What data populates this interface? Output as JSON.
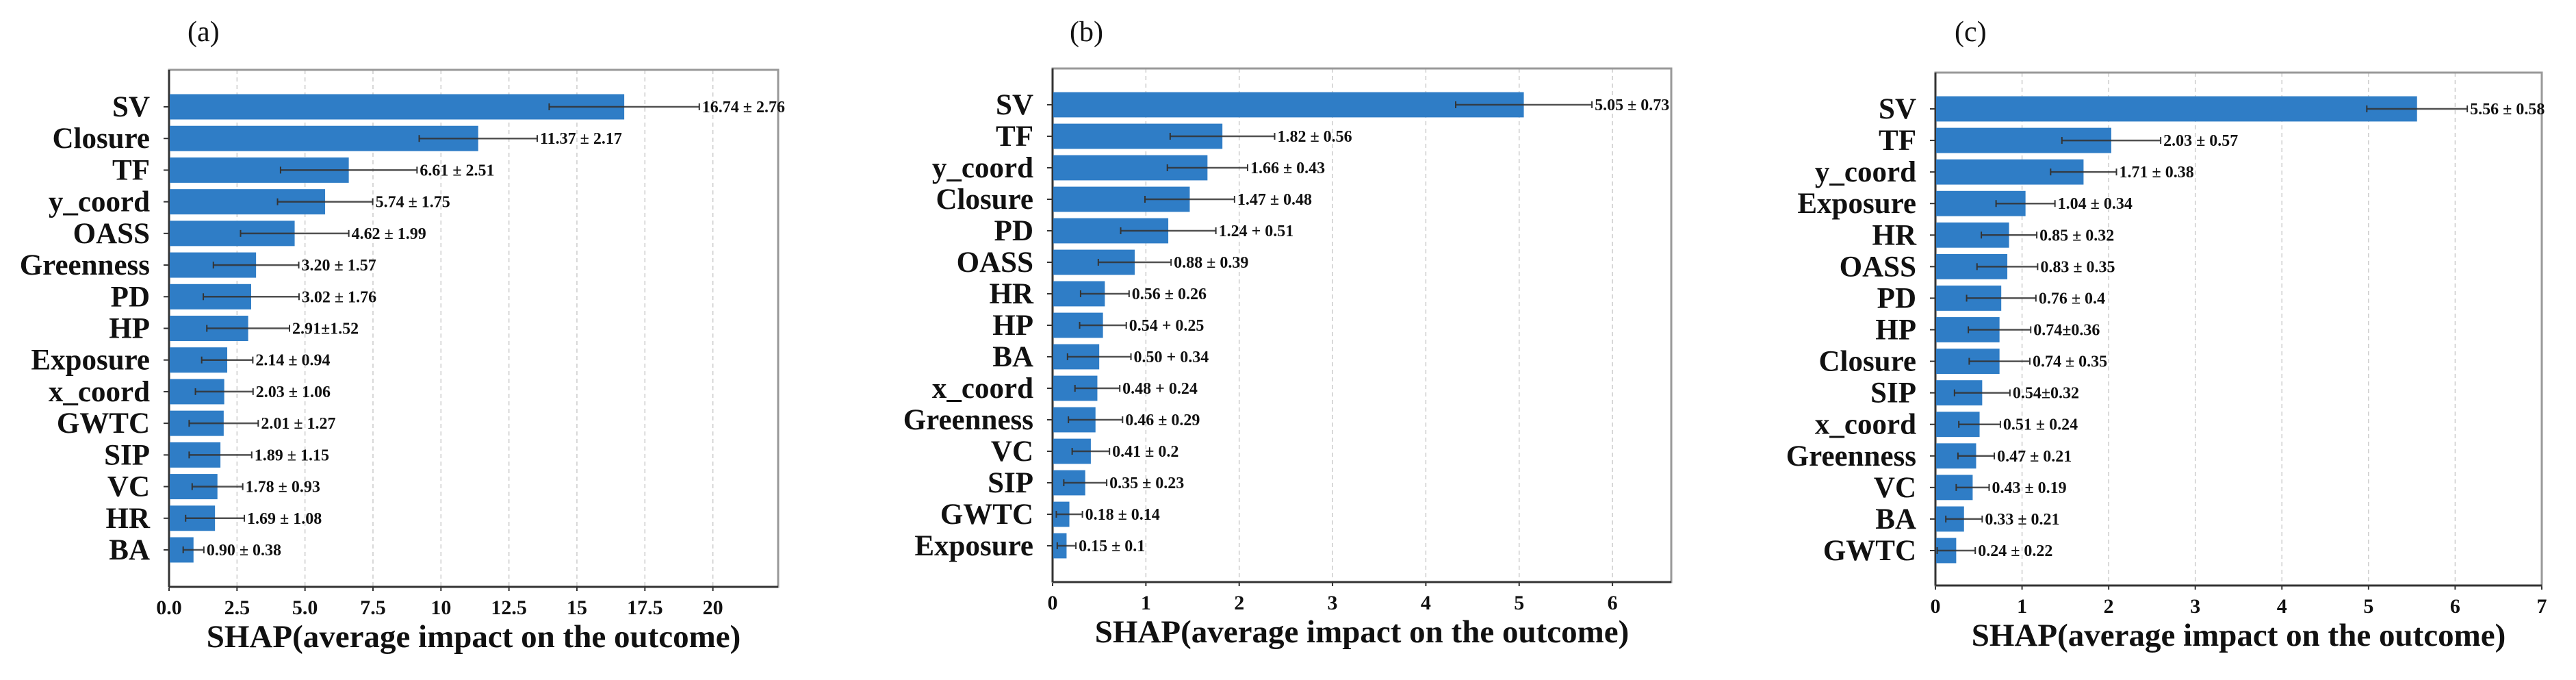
{
  "colors": {
    "bar": "#2f7dc6",
    "error": "#333333",
    "grid": "#cccccc",
    "frame": "#999999"
  },
  "chart_data": [
    {
      "type": "bar",
      "orientation": "horizontal",
      "panel_label": "(a)",
      "xlabel": "SHAP(average impact on the outcome)",
      "xlim": [
        0,
        22.4
      ],
      "xticks": [
        0,
        2.5,
        5,
        7.5,
        10,
        12.5,
        15,
        17.5,
        20
      ],
      "xtick_labels": [
        "0.0",
        "2.5",
        "5.0",
        "7.5",
        "10",
        "12.5",
        "15",
        "17.5",
        "20"
      ],
      "grid": "vertical dashed",
      "categories": [
        "SV",
        "Closure",
        "TF",
        "y_coord",
        "OASS",
        "Greenness",
        "PD",
        "HP",
        "Exposure",
        "x_coord",
        "GWTC",
        "SIP",
        "VC",
        "HR",
        "BA"
      ],
      "values": [
        16.74,
        11.37,
        6.61,
        5.74,
        4.62,
        3.2,
        3.02,
        2.91,
        2.14,
        2.03,
        2.01,
        1.89,
        1.78,
        1.69,
        0.9
      ],
      "errors": [
        2.76,
        2.17,
        2.51,
        1.75,
        1.99,
        1.57,
        1.76,
        1.52,
        0.94,
        1.06,
        1.27,
        1.15,
        0.93,
        1.08,
        0.38
      ],
      "value_labels": [
        "16.74 ± 2.76",
        "11.37 ± 2.17",
        "6.61 ± 2.51",
        "5.74 ± 1.75",
        "4.62 ± 1.99",
        "3.20 ± 1.57",
        "3.02 ± 1.76",
        "2.91±1.52",
        "2.14 ± 0.94",
        "2.03 ± 1.06",
        "2.01 ± 1.27",
        "1.89 ± 1.15",
        "1.78 ± 0.93",
        "1.69 ± 1.08",
        "0.90 ± 0.38"
      ]
    },
    {
      "type": "bar",
      "orientation": "horizontal",
      "panel_label": "(b)",
      "xlabel": "SHAP(average impact on the outcome)",
      "xlim": [
        0,
        6.63
      ],
      "xticks": [
        0,
        1,
        2,
        3,
        4,
        5,
        6
      ],
      "xtick_labels": [
        "0",
        "1",
        "2",
        "3",
        "4",
        "5",
        "6"
      ],
      "grid": "vertical dashed",
      "categories": [
        "SV",
        "TF",
        "y_coord",
        "Closure",
        "PD",
        "OASS",
        "HR",
        "HP",
        "BA",
        "x_coord",
        "Greenness",
        "VC",
        "SIP",
        "GWTC",
        "Exposure"
      ],
      "values": [
        5.05,
        1.82,
        1.66,
        1.47,
        1.24,
        0.88,
        0.56,
        0.54,
        0.5,
        0.48,
        0.46,
        0.41,
        0.35,
        0.18,
        0.15
      ],
      "errors": [
        0.73,
        0.56,
        0.43,
        0.48,
        0.51,
        0.39,
        0.26,
        0.25,
        0.34,
        0.24,
        0.29,
        0.2,
        0.23,
        0.14,
        0.1
      ],
      "value_labels": [
        "5.05 ± 0.73",
        "1.82 ± 0.56",
        "1.66 ± 0.43",
        "1.47 ± 0.48",
        "1.24 + 0.51",
        "0.88 ± 0.39",
        "0.56 ± 0.26",
        "0.54 + 0.25",
        "0.50 + 0.34",
        "0.48 + 0.24",
        "0.46 ± 0.29",
        "0.41 ± 0.2",
        "0.35 ± 0.23",
        "0.18 ± 0.14",
        "0.15 ± 0.1"
      ]
    },
    {
      "type": "bar",
      "orientation": "horizontal",
      "panel_label": "(c)",
      "xlabel": "SHAP(average impact on the outcome)",
      "xlim": [
        0,
        7
      ],
      "xticks": [
        0,
        1,
        2,
        3,
        4,
        5,
        6,
        7
      ],
      "xtick_labels": [
        "0",
        "1",
        "2",
        "3",
        "4",
        "5",
        "6",
        "7"
      ],
      "grid": "vertical dashed",
      "categories": [
        "SV",
        "TF",
        "y_coord",
        "Exposure",
        "HR",
        "OASS",
        "PD",
        "HP",
        "Closure",
        "SIP",
        "x_coord",
        "Greenness",
        "VC",
        "BA",
        "GWTC"
      ],
      "values": [
        5.56,
        2.03,
        1.71,
        1.04,
        0.85,
        0.83,
        0.76,
        0.74,
        0.74,
        0.54,
        0.51,
        0.47,
        0.43,
        0.33,
        0.24
      ],
      "errors": [
        0.58,
        0.57,
        0.38,
        0.34,
        0.32,
        0.35,
        0.4,
        0.36,
        0.35,
        0.32,
        0.24,
        0.21,
        0.19,
        0.21,
        0.22
      ],
      "value_labels": [
        "5.56 ± 0.58",
        "2.03 ± 0.57",
        "1.71 ± 0.38",
        "1.04 ± 0.34",
        "0.85 ± 0.32",
        "0.83 ± 0.35",
        "0.76 ± 0.4",
        "0.74±0.36",
        "0.74 ± 0.35",
        "0.54±0.32",
        "0.51 ± 0.24",
        "0.47 ± 0.21",
        "0.43 ± 0.19",
        "0.33 ± 0.21",
        "0.24 ± 0.22"
      ]
    }
  ]
}
